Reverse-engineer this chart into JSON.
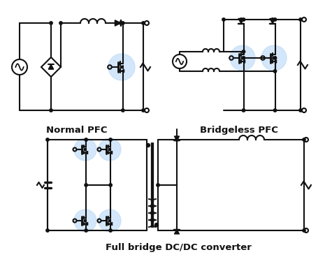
{
  "title1": "Normal PFC",
  "title2": "Bridgeless PFC",
  "title3": "Full bridge DC/DC converter",
  "bg_color": "#ffffff",
  "line_color": "#111111",
  "highlight_color": "#b8d8f8",
  "highlight_alpha": 0.6,
  "lw": 1.5,
  "font_size": 9.5
}
